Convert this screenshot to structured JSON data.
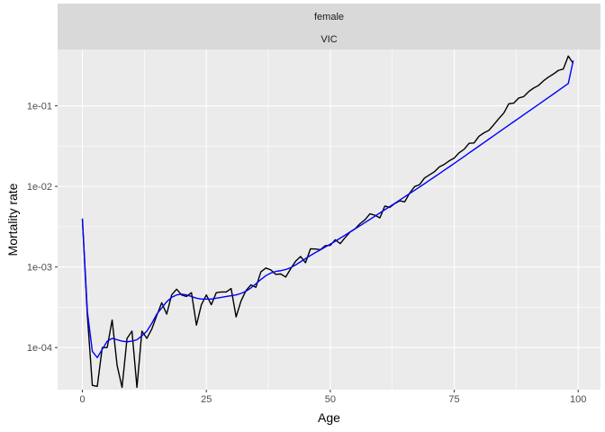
{
  "chart_data": {
    "type": "line",
    "facet": {
      "row1": "female",
      "row2": "VIC"
    },
    "xlabel": "Age",
    "ylabel": "Mortality rate",
    "xlim": [
      -5,
      104.5
    ],
    "ylim": [
      3e-05,
      0.5
    ],
    "y_scale": "log10",
    "x_ticks": [
      0,
      25,
      50,
      75,
      100
    ],
    "x_tick_labels": [
      "0",
      "25",
      "50",
      "75",
      "100"
    ],
    "y_ticks": [
      0.0001,
      0.001,
      0.01,
      0.1
    ],
    "y_tick_labels": [
      "1e-04",
      "1e-03",
      "1e-02",
      "1e-01"
    ],
    "grid": true,
    "x": [
      0,
      1,
      2,
      3,
      4,
      5,
      6,
      7,
      8,
      9,
      10,
      11,
      12,
      13,
      14,
      15,
      16,
      17,
      18,
      19,
      20,
      21,
      22,
      23,
      24,
      25,
      26,
      27,
      28,
      29,
      30,
      31,
      32,
      33,
      34,
      35,
      36,
      37,
      38,
      39,
      40,
      41,
      42,
      43,
      44,
      45,
      46,
      47,
      48,
      49,
      50,
      51,
      52,
      53,
      54,
      55,
      56,
      57,
      58,
      59,
      60,
      61,
      62,
      63,
      64,
      65,
      66,
      67,
      68,
      69,
      70,
      71,
      72,
      73,
      74,
      75,
      76,
      77,
      78,
      79,
      80,
      81,
      82,
      83,
      84,
      85,
      86,
      87,
      88,
      89,
      90,
      91,
      92,
      93,
      94,
      95,
      96,
      97,
      98,
      99
    ],
    "series": [
      {
        "color": "#000000",
        "values": [
          0.0039,
          0.00025,
          3.4e-05,
          3.3e-05,
          0.0001,
          0.0001,
          0.00022,
          6e-05,
          3.2e-05,
          0.00013,
          0.00016,
          3.2e-05,
          0.00016,
          0.00013,
          0.00017,
          0.00025,
          0.00036,
          0.00026,
          0.00045,
          0.00053,
          0.00045,
          0.00043,
          0.00048,
          0.00019,
          0.00034,
          0.00045,
          0.00034,
          0.00048,
          0.00049,
          0.00049,
          0.00054,
          0.00024,
          0.00038,
          0.00051,
          0.0006,
          0.00056,
          0.00087,
          0.00097,
          0.00092,
          0.00081,
          0.00082,
          0.00075,
          0.00095,
          0.00118,
          0.00135,
          0.00113,
          0.00168,
          0.00167,
          0.00164,
          0.00184,
          0.00185,
          0.00218,
          0.00195,
          0.00232,
          0.00272,
          0.00298,
          0.00345,
          0.00385,
          0.00457,
          0.00439,
          0.00407,
          0.00571,
          0.00549,
          0.00612,
          0.00663,
          0.00643,
          0.00824,
          0.00995,
          0.0105,
          0.0127,
          0.0139,
          0.0152,
          0.0175,
          0.0188,
          0.0208,
          0.0225,
          0.0262,
          0.0289,
          0.0343,
          0.0346,
          0.042,
          0.0462,
          0.0497,
          0.0585,
          0.0696,
          0.0814,
          0.106,
          0.108,
          0.125,
          0.13,
          0.15,
          0.166,
          0.179,
          0.204,
          0.227,
          0.248,
          0.275,
          0.286,
          0.415,
          0.335
        ]
      },
      {
        "color": "#0000ff",
        "values": [
          0.004,
          0.00028,
          9e-05,
          7.5e-05,
          9.5e-05,
          0.00012,
          0.00013,
          0.000125,
          0.00012,
          0.000118,
          0.00012,
          0.000125,
          0.00014,
          0.00016,
          0.0002,
          0.00026,
          0.00031,
          0.00037,
          0.00042,
          0.00045,
          0.00046,
          0.00045,
          0.00043,
          0.00041,
          0.0004,
          0.0004,
          0.0004,
          0.00041,
          0.00042,
          0.00043,
          0.00044,
          0.00045,
          0.00047,
          0.0005,
          0.00055,
          0.00062,
          0.0007,
          0.00078,
          0.00084,
          0.00088,
          0.0009,
          0.00093,
          0.00098,
          0.00106,
          0.00116,
          0.00127,
          0.00139,
          0.00151,
          0.00163,
          0.00177,
          0.00192,
          0.00209,
          0.00228,
          0.00249,
          0.00272,
          0.00297,
          0.00325,
          0.00356,
          0.0039,
          0.00427,
          0.00468,
          0.00513,
          0.00562,
          0.00616,
          0.00676,
          0.00742,
          0.00815,
          0.00895,
          0.00983,
          0.0108,
          0.0119,
          0.0131,
          0.0144,
          0.0159,
          0.0175,
          0.0193,
          0.0213,
          0.0235,
          0.026,
          0.0287,
          0.0317,
          0.035,
          0.0387,
          0.0427,
          0.0472,
          0.0521,
          0.0575,
          0.0635,
          0.0701,
          0.0774,
          0.0854,
          0.0942,
          0.104,
          0.115,
          0.127,
          0.14,
          0.155,
          0.171,
          0.189,
          0.365
        ]
      }
    ]
  }
}
